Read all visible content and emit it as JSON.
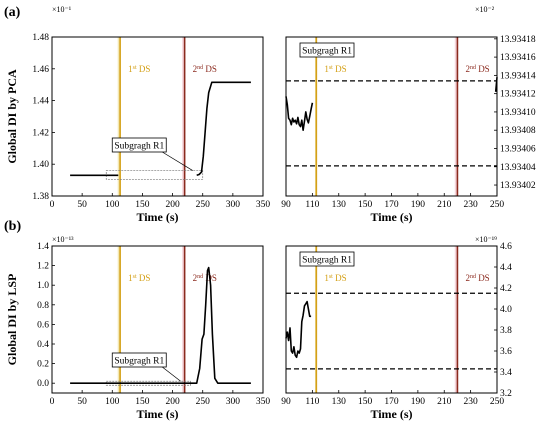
{
  "figure": {
    "panel_a": "(a)",
    "panel_b": "(b)",
    "exp_a_left": "×10⁻¹",
    "exp_a_right": "×10⁻²",
    "exp_b_left": "×10⁻¹³",
    "exp_b_right": "×10⁻¹⁹",
    "colors": {
      "first_ds": "#d4a017",
      "second_ds": "#8b2a1e",
      "band_first": "#efe2a0",
      "band_second": "#f2c8cf"
    }
  },
  "chart_data": [
    {
      "id": "a-left",
      "type": "line",
      "xlabel": "Time (s)",
      "ylabel": "Global DI by PCA",
      "x_ticks": [
        0,
        50,
        100,
        150,
        200,
        250,
        300,
        350
      ],
      "y_ticks": [
        "1.38",
        "1.40",
        "1.42",
        "1.44",
        "1.46",
        "1.48"
      ],
      "xlim": [
        0,
        350
      ],
      "ylim": [
        1.38,
        1.48
      ],
      "ds_lines": [
        {
          "x": 113,
          "label": "1st DS",
          "band": [
            109,
            113
          ]
        },
        {
          "x": 220,
          "label": "2nd DS",
          "band": [
            216,
            220
          ]
        }
      ],
      "subgraph": {
        "label": "Subgragh R1",
        "x_range": [
          90,
          250
        ],
        "y_range": [
          1.3905,
          1.396
        ]
      },
      "series": [
        {
          "x": [
            30,
            110
          ],
          "y": [
            1.393,
            1.393
          ]
        },
        {
          "x": [
            240,
            244,
            248,
            251,
            254,
            257,
            260,
            265,
            330
          ],
          "y": [
            1.393,
            1.3935,
            1.395,
            1.405,
            1.42,
            1.435,
            1.445,
            1.4515,
            1.4515
          ]
        }
      ]
    },
    {
      "id": "a-right",
      "type": "line",
      "xlabel": "Time (s)",
      "x_ticks": [
        90,
        110,
        130,
        150,
        170,
        190,
        210,
        230,
        250
      ],
      "y_ticks": [
        "13.93402",
        "13.93404",
        "13.93406",
        "13.93408",
        "13.93410",
        "13.93412",
        "13.93414",
        "13.93416",
        "13.93418"
      ],
      "xlim": [
        90,
        250
      ],
      "ylim": [
        13.934008,
        13.934182
      ],
      "ds_lines": [
        {
          "x": 113,
          "label": "1st DS",
          "band": [
            112,
            113
          ]
        },
        {
          "x": 220,
          "label": "2nd DS",
          "band": [
            218,
            220
          ]
        }
      ],
      "subgraph": {
        "label": "Subgragh R1"
      },
      "thresholds": [
        13.934134,
        13.934041
      ],
      "series": [
        {
          "x": [
            90,
            91,
            92,
            93,
            94,
            95,
            96,
            97,
            98,
            99,
            100,
            101,
            102,
            103,
            104,
            105,
            106,
            107,
            108,
            109,
            110
          ],
          "y": [
            13.934117,
            13.934108,
            13.934093,
            13.934091,
            13.934086,
            13.934093,
            13.934089,
            13.934091,
            13.934087,
            13.934094,
            13.934086,
            13.934084,
            13.934091,
            13.93408,
            13.93409,
            13.9341,
            13.934092,
            13.934088,
            13.934095,
            13.934103,
            13.93411
          ]
        },
        {
          "x": [
            249,
            250
          ],
          "y": [
            13.934122,
            13.934138
          ]
        }
      ]
    },
    {
      "id": "b-left",
      "type": "line",
      "xlabel": "Time (s)",
      "ylabel": "Global DI by LSP",
      "x_ticks": [
        0,
        50,
        100,
        150,
        200,
        250,
        300,
        350
      ],
      "y_ticks": [
        "0.0",
        "0.2",
        "0.4",
        "0.6",
        "0.8",
        "1.0",
        "1.2",
        "1.4"
      ],
      "xlim": [
        0,
        350
      ],
      "ylim": [
        -0.1,
        1.4
      ],
      "ds_lines": [
        {
          "x": 113,
          "label": "1st DS",
          "band": [
            109,
            113
          ]
        },
        {
          "x": 220,
          "label": "2nd DS",
          "band": [
            216,
            220
          ]
        }
      ],
      "subgraph": {
        "label": "Subgragh R1",
        "x_range": [
          90,
          230
        ],
        "y_range": [
          -0.005,
          0.02
        ]
      },
      "series": [
        {
          "x": [
            30,
            240,
            245,
            249,
            252,
            255,
            258,
            260,
            263,
            266,
            270,
            275,
            330
          ],
          "y": [
            0,
            0,
            0.15,
            0.45,
            0.5,
            0.8,
            1.15,
            1.18,
            1.0,
            0.5,
            0.05,
            0,
            0
          ]
        }
      ]
    },
    {
      "id": "b-right",
      "type": "line",
      "xlabel": "Time (s)",
      "x_ticks": [
        90,
        110,
        130,
        150,
        170,
        190,
        210,
        230,
        250
      ],
      "y_ticks": [
        "3.2",
        "3.4",
        "3.6",
        "3.8",
        "4.0",
        "4.2",
        "4.4",
        "4.6"
      ],
      "xlim": [
        90,
        250
      ],
      "ylim": [
        3.2,
        4.6
      ],
      "ds_lines": [
        {
          "x": 113,
          "label": "1st DS",
          "band": [
            112,
            113
          ]
        },
        {
          "x": 220,
          "label": "2nd DS",
          "band": [
            218,
            220
          ]
        }
      ],
      "subgraph": {
        "label": "Subgragh R1"
      },
      "thresholds": [
        4.15,
        3.43
      ],
      "series": [
        {
          "x": [
            90,
            91,
            92,
            93,
            94,
            95,
            96,
            97,
            98,
            99,
            100,
            101,
            102,
            103,
            104,
            105,
            106,
            107,
            108,
            109
          ],
          "y": [
            3.72,
            3.78,
            3.7,
            3.82,
            3.6,
            3.58,
            3.64,
            3.56,
            3.54,
            3.6,
            3.58,
            3.62,
            3.88,
            3.94,
            4.03,
            4.05,
            4.07,
            4.0,
            3.93,
            3.93
          ]
        }
      ]
    }
  ]
}
